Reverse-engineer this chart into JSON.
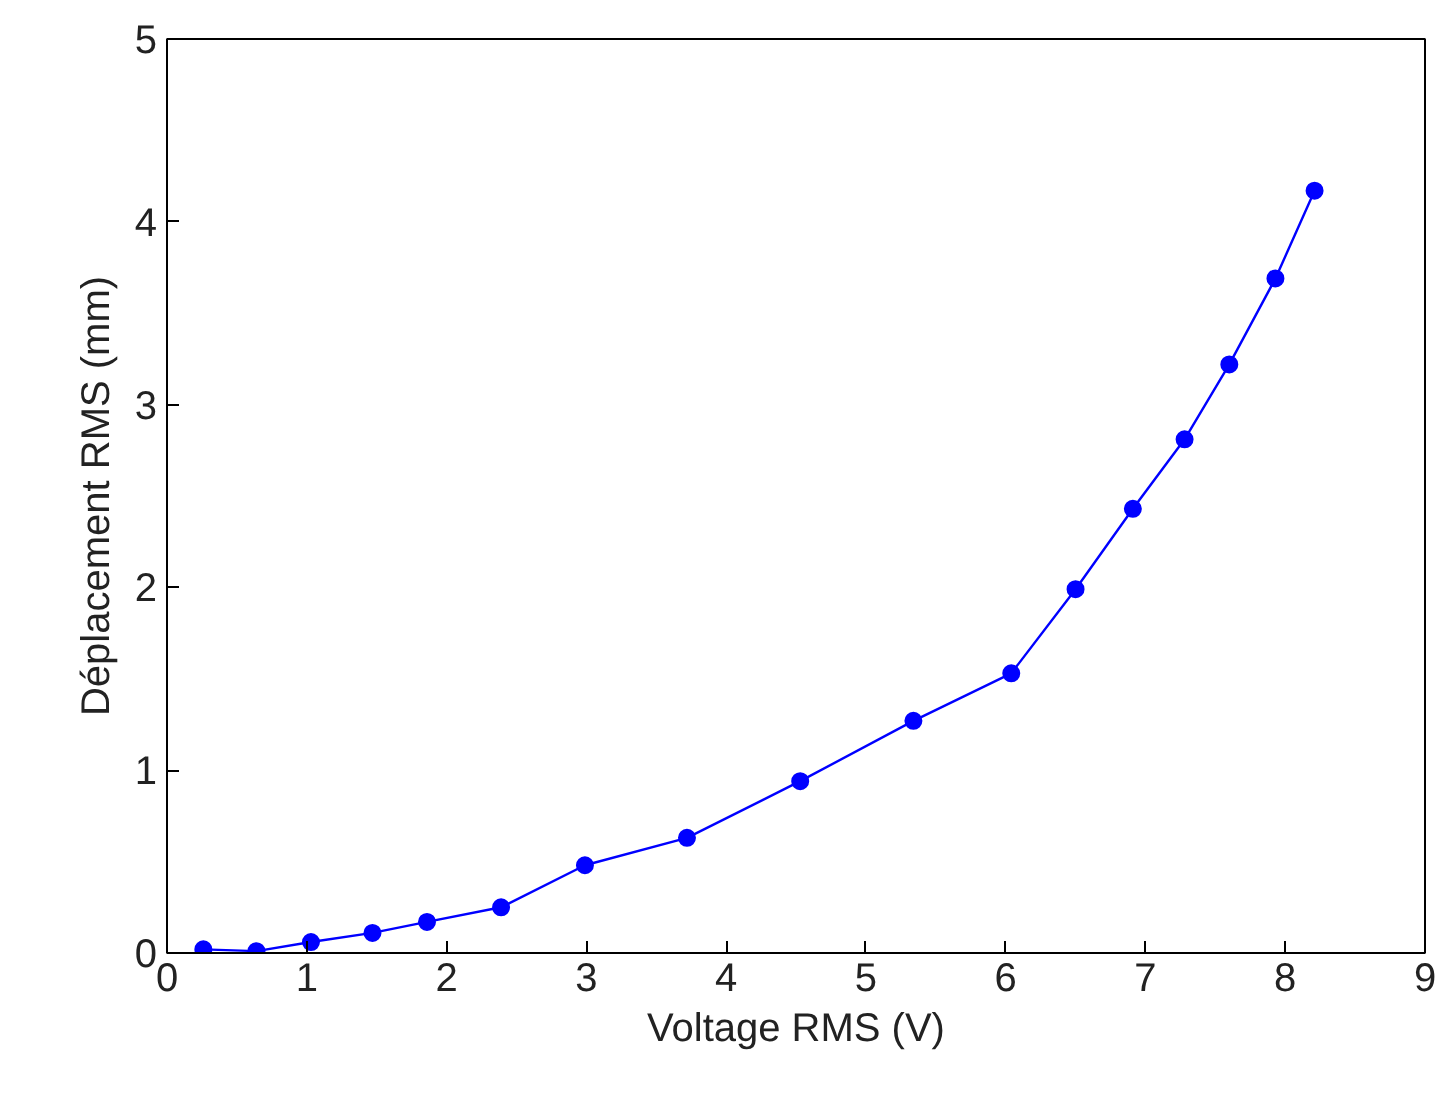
{
  "chart_data": {
    "type": "line",
    "xlabel": "Voltage RMS (V)",
    "ylabel": "Déplacement RMS (mm)",
    "x": [
      0.26,
      0.64,
      1.03,
      1.47,
      1.86,
      2.39,
      2.99,
      3.72,
      4.53,
      5.34,
      6.04,
      6.5,
      6.91,
      7.28,
      7.6,
      7.93,
      8.21
    ],
    "series": [
      {
        "color": "#0000ff",
        "values": [
          0.02,
          0.01,
          0.06,
          0.11,
          0.17,
          0.25,
          0.48,
          0.63,
          0.94,
          1.27,
          1.53,
          1.99,
          2.43,
          2.81,
          3.22,
          3.69,
          4.17
        ]
      }
    ],
    "xlim": [
      0,
      9
    ],
    "ylim": [
      0,
      5
    ],
    "xticks": [
      0,
      1,
      2,
      3,
      4,
      5,
      6,
      7,
      8,
      9
    ],
    "yticks": [
      0,
      1,
      2,
      3,
      4,
      5
    ],
    "marker": "circle",
    "line_style": "solid",
    "grid": false
  }
}
